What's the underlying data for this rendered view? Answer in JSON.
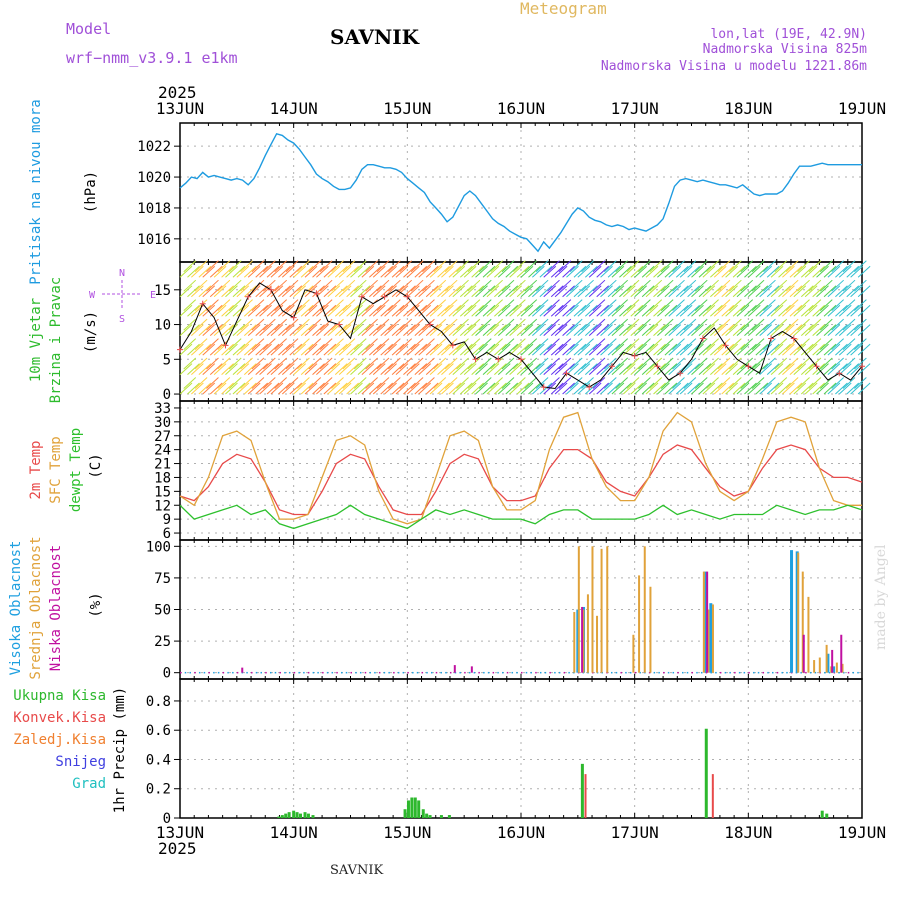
{
  "header": {
    "model_label": "Model",
    "model_name": "wrf−nmm_v3.9.1  e1km",
    "station": "SAVNIK",
    "meteogram_label": "Meteogram",
    "lonlat": "lon,lat (19E, 42.9N)",
    "altitude": "Nadmorska Visina 825m",
    "model_altitude": "Nadmorska Visina u modelu 1221.86m",
    "year_top": "2025",
    "year_bottom": "2025",
    "footer_station": "SAVNIK",
    "credit": "made by Angel"
  },
  "colors": {
    "pressure": "#1e9be0",
    "wind_label": "#2dbb2d",
    "temp2m": "#e84a4a",
    "sfc": "#e0a23a",
    "dewpt": "#2dc02d",
    "high_cloud": "#1fa0e0",
    "mid_cloud": "#e0a23a",
    "low_cloud": "#c010a0",
    "total_precip": "#2db82d",
    "conv_precip": "#e84a4a",
    "frozen": "#f08030",
    "snow": "#4040e0",
    "hail": "#20c0c0",
    "axis": "#000000",
    "grid": "#b0b0b0"
  },
  "chart_data": [
    {
      "type": "line",
      "panel": "pressure",
      "ylabel_side": "Pritisak na nivou mora",
      "ylabel_unit": "(hPa)",
      "x_ticks": [
        "13JUN",
        "14JUN",
        "15JUN",
        "16JUN",
        "17JUN",
        "18JUN",
        "19JUN"
      ],
      "ylim": [
        1014.5,
        1023.5
      ],
      "yticks": [
        1016,
        1018,
        1020,
        1022
      ],
      "grid": true,
      "series": [
        {
          "x": [
            0,
            0.05,
            0.1,
            0.15,
            0.2,
            0.25,
            0.3,
            0.35,
            0.4,
            0.45,
            0.5,
            0.55,
            0.6,
            0.65,
            0.7,
            0.75,
            0.8,
            0.85,
            0.9,
            0.95,
            1.0,
            1.05,
            1.1,
            1.15,
            1.2,
            1.25,
            1.3,
            1.35,
            1.4,
            1.45,
            1.5,
            1.55,
            1.6,
            1.65,
            1.7,
            1.75,
            1.8,
            1.85,
            1.9,
            1.95,
            2.0,
            2.05,
            2.1,
            2.15,
            2.2,
            2.25,
            2.3,
            2.35,
            2.4,
            2.45,
            2.5,
            2.55,
            2.6,
            2.65,
            2.7,
            2.75,
            2.8,
            2.85,
            2.9,
            2.95,
            3.0,
            3.05,
            3.1,
            3.15,
            3.2,
            3.25,
            3.3,
            3.35,
            3.4,
            3.45,
            3.5,
            3.55,
            3.6,
            3.65,
            3.7,
            3.75,
            3.8,
            3.85,
            3.9,
            3.95,
            4.0,
            4.05,
            4.1,
            4.15,
            4.2,
            4.25,
            4.3,
            4.35,
            4.4,
            4.45,
            4.5,
            4.55,
            4.6,
            4.65,
            4.7,
            4.75,
            4.8,
            4.85,
            4.9,
            4.95,
            5.0,
            5.05,
            5.1,
            5.15,
            5.2,
            5.25,
            5.3,
            5.35,
            5.4,
            5.45,
            5.5,
            5.55,
            5.6,
            5.65,
            5.7,
            5.75,
            5.8,
            5.85,
            5.9,
            5.95,
            6.0
          ],
          "values": [
            1019.3,
            1019.6,
            1020.0,
            1019.9,
            1020.3,
            1020.0,
            1020.1,
            1020.0,
            1019.9,
            1019.8,
            1019.9,
            1019.8,
            1019.5,
            1019.9,
            1020.6,
            1021.4,
            1022.1,
            1022.8,
            1022.7,
            1022.4,
            1022.2,
            1021.8,
            1021.3,
            1020.8,
            1020.2,
            1019.9,
            1019.7,
            1019.4,
            1019.2,
            1019.2,
            1019.3,
            1019.8,
            1020.5,
            1020.8,
            1020.8,
            1020.7,
            1020.6,
            1020.6,
            1020.5,
            1020.3,
            1019.9,
            1019.6,
            1019.3,
            1019.0,
            1018.4,
            1018.0,
            1017.6,
            1017.1,
            1017.4,
            1018.1,
            1018.8,
            1019.1,
            1018.8,
            1018.3,
            1017.8,
            1017.3,
            1017.0,
            1016.8,
            1016.5,
            1016.3,
            1016.1,
            1016.0,
            1015.6,
            1015.2,
            1015.8,
            1015.4,
            1015.9,
            1016.4,
            1017.0,
            1017.6,
            1018.0,
            1017.8,
            1017.4,
            1017.2,
            1017.1,
            1016.9,
            1016.8,
            1016.9,
            1016.8,
            1016.6,
            1016.7,
            1016.6,
            1016.5,
            1016.7,
            1016.9,
            1017.3,
            1018.3,
            1019.4,
            1019.8,
            1019.9,
            1019.8,
            1019.7,
            1019.8,
            1019.7,
            1019.6,
            1019.5,
            1019.5,
            1019.4,
            1019.3,
            1019.5,
            1019.2,
            1018.9,
            1018.8,
            1018.9,
            1018.9,
            1018.9,
            1019.1,
            1019.6,
            1020.2,
            1020.7,
            1020.7,
            1020.7,
            1020.8,
            1020.9,
            1020.8,
            1020.8,
            1020.8,
            1020.8,
            1020.8,
            1020.8,
            1020.8
          ],
          "color_key": "pressure"
        }
      ]
    },
    {
      "type": "line",
      "panel": "wind",
      "ylabel_side": [
        "10m Vjetar",
        "Brzina i Pravac"
      ],
      "ylabel_unit": "(m/s)",
      "compass": {
        "n": "N",
        "s": "S",
        "e": "E",
        "w": "W"
      },
      "ylim": [
        -1,
        19
      ],
      "yticks": [
        0,
        5,
        10,
        15
      ],
      "grid": true,
      "series": [
        {
          "name": "wind speed",
          "x": [
            0,
            0.1,
            0.2,
            0.3,
            0.4,
            0.5,
            0.6,
            0.7,
            0.8,
            0.9,
            1.0,
            1.1,
            1.2,
            1.3,
            1.4,
            1.5,
            1.6,
            1.7,
            1.8,
            1.9,
            2.0,
            2.1,
            2.2,
            2.3,
            2.4,
            2.5,
            2.6,
            2.7,
            2.8,
            2.9,
            3.0,
            3.1,
            3.2,
            3.3,
            3.4,
            3.5,
            3.6,
            3.7,
            3.8,
            3.9,
            4.0,
            4.1,
            4.2,
            4.3,
            4.4,
            4.5,
            4.6,
            4.7,
            4.8,
            4.9,
            5.0,
            5.1,
            5.2,
            5.3,
            5.4,
            5.5,
            5.6,
            5.7,
            5.8,
            5.9,
            6.0
          ],
          "values": [
            6.4,
            9.0,
            13.0,
            11.0,
            7.0,
            10.5,
            14.0,
            16.0,
            15.0,
            12.0,
            11.0,
            15.0,
            14.5,
            10.5,
            10.0,
            8.0,
            14.0,
            13.0,
            14.0,
            15.0,
            14.0,
            12.0,
            10.0,
            9.0,
            7.0,
            7.5,
            5.0,
            6.0,
            5.0,
            6.0,
            5.0,
            3.0,
            1.0,
            0.8,
            3.0,
            2.0,
            1.0,
            2.0,
            4.0,
            6.0,
            5.5,
            6.0,
            4.0,
            2.0,
            3.0,
            5.0,
            8.0,
            9.5,
            7.0,
            5.0,
            4.0,
            3.0,
            8.0,
            9.0,
            8.0,
            6.0,
            4.0,
            2.0,
            3.0,
            2.0,
            4.0
          ]
        }
      ]
    },
    {
      "type": "line",
      "panel": "temperature",
      "ylabel_side": [
        "2m Temp",
        "SFC Temp",
        "dewpt Temp"
      ],
      "ylabel_unit": "(C)",
      "ylim": [
        4.5,
        34.5
      ],
      "yticks": [
        6,
        9,
        12,
        15,
        18,
        21,
        24,
        27,
        30,
        33
      ],
      "grid": true,
      "x": [
        0,
        0.125,
        0.25,
        0.375,
        0.5,
        0.625,
        0.75,
        0.875,
        1.0,
        1.125,
        1.25,
        1.375,
        1.5,
        1.625,
        1.75,
        1.875,
        2.0,
        2.125,
        2.25,
        2.375,
        2.5,
        2.625,
        2.75,
        2.875,
        3.0,
        3.125,
        3.25,
        3.375,
        3.5,
        3.625,
        3.75,
        3.875,
        4.0,
        4.125,
        4.25,
        4.375,
        4.5,
        4.625,
        4.75,
        4.875,
        5.0,
        5.125,
        5.25,
        5.375,
        5.5,
        5.625,
        5.75,
        5.875,
        6.0
      ],
      "series": [
        {
          "name": "2m Temp",
          "color_key": "temp2m",
          "values": [
            14,
            13,
            16,
            21,
            23,
            22,
            17,
            11,
            10,
            10,
            15,
            21,
            23,
            22,
            16,
            11,
            10,
            10,
            15,
            21,
            23,
            22,
            16,
            13,
            13,
            14,
            20,
            24,
            24,
            22,
            17,
            15,
            14,
            18,
            23,
            25,
            24,
            20,
            16,
            14,
            15,
            20,
            24,
            25,
            24,
            20,
            18,
            18,
            17
          ]
        },
        {
          "name": "SFC Temp",
          "color_key": "sfc",
          "values": [
            14,
            12,
            18,
            27,
            28,
            26,
            17,
            9,
            9,
            10,
            18,
            26,
            27,
            25,
            15,
            9,
            8,
            9,
            18,
            27,
            28,
            26,
            16,
            11,
            11,
            13,
            24,
            31,
            32,
            22,
            16,
            13,
            13,
            18,
            28,
            32,
            30,
            21,
            15,
            13,
            15,
            22,
            30,
            31,
            30,
            20,
            13,
            12,
            12
          ]
        },
        {
          "name": "dewpt Temp",
          "color_key": "dewpt",
          "values": [
            12,
            9,
            10,
            11,
            12,
            10,
            11,
            8,
            7,
            8,
            9,
            10,
            12,
            10,
            9,
            8,
            7,
            9,
            11,
            10,
            11,
            10,
            9,
            9,
            9,
            8,
            10,
            11,
            11,
            9,
            9,
            9,
            9,
            10,
            12,
            10,
            11,
            10,
            9,
            10,
            10,
            10,
            12,
            11,
            10,
            11,
            11,
            12,
            11
          ]
        }
      ]
    },
    {
      "type": "bar",
      "panel": "clouds",
      "ylabel_side": [
        "Visoka Oblacnost",
        "Srednja Oblacnost",
        "Niska Oblacnost"
      ],
      "ylabel_unit": "(%)",
      "ylim": [
        -5,
        105
      ],
      "yticks": [
        0,
        25,
        50,
        75,
        100
      ],
      "grid": true,
      "series": [
        {
          "name": "Visoka Oblacnost",
          "color_key": "high_cloud",
          "x": [
            3.5,
            3.55,
            4.62,
            4.67,
            5.38,
            5.43,
            5.7,
            5.75
          ],
          "values": [
            50,
            52,
            80,
            55,
            97,
            96,
            15,
            5
          ]
        },
        {
          "name": "Srednja Oblacnost",
          "color_key": "mid_cloud",
          "x": [
            3.46,
            3.5,
            3.54,
            3.58,
            3.62,
            3.66,
            3.7,
            3.75,
            3.98,
            4.03,
            4.08,
            4.13,
            4.6,
            4.64,
            4.68,
            5.43,
            5.47,
            5.52,
            5.57,
            5.62,
            5.68,
            5.72,
            5.77,
            5.82
          ],
          "values": [
            48,
            100,
            50,
            62,
            100,
            45,
            98,
            100,
            30,
            77,
            100,
            68,
            80,
            50,
            54,
            95,
            80,
            60,
            10,
            12,
            22,
            5,
            8,
            7
          ]
        },
        {
          "name": "Niska Oblacnost",
          "color_key": "low_cloud",
          "x": [
            0.53,
            2.4,
            2.55,
            3.52,
            4.62,
            5.47,
            5.72,
            5.8
          ],
          "values": [
            4,
            6,
            5,
            52,
            80,
            30,
            18,
            30
          ]
        }
      ]
    },
    {
      "type": "bar",
      "panel": "precipitation",
      "ylabel_side": [
        "Ukupna Kisa",
        "Konvek.Kisa",
        "Zaledj.Kisa",
        "Snijeg",
        "Grad"
      ],
      "ylabel_unit": "1hr Precip (mm)",
      "ylim": [
        0,
        0.95
      ],
      "yticks": [
        0,
        0.2,
        0.4,
        0.6,
        0.8
      ],
      "grid": true,
      "series": [
        {
          "name": "Ukupna Kisa",
          "color_key": "total_precip",
          "x": [
            0.87,
            0.9,
            0.93,
            0.96,
            1.0,
            1.03,
            1.06,
            1.1,
            1.13,
            1.17,
            1.98,
            2.01,
            2.04,
            2.07,
            2.1,
            2.14,
            2.17,
            2.2,
            2.3,
            2.37,
            3.54,
            4.63,
            5.65,
            5.69
          ],
          "values": [
            0.01,
            0.02,
            0.03,
            0.04,
            0.05,
            0.04,
            0.03,
            0.04,
            0.03,
            0.02,
            0.06,
            0.12,
            0.14,
            0.14,
            0.12,
            0.06,
            0.03,
            0.02,
            0.02,
            0.02,
            0.37,
            0.61,
            0.05,
            0.03
          ]
        },
        {
          "name": "Konvek.Kisa",
          "color_key": "conv_precip",
          "x": [
            3.55,
            4.67
          ],
          "values": [
            0.3,
            0.3
          ]
        }
      ]
    }
  ]
}
